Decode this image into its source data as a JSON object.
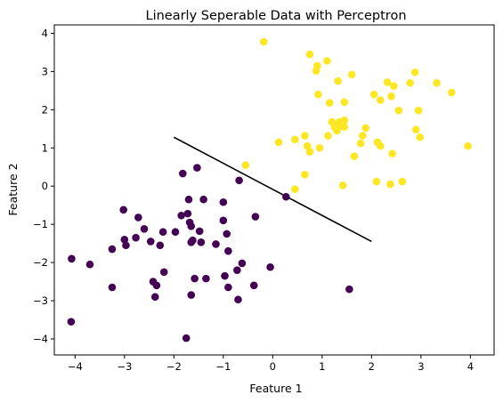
{
  "chart_data": {
    "type": "scatter",
    "title": "Linearly Seperable Data with Perceptron",
    "xlabel": "Feature 1",
    "ylabel": "Feature 2",
    "xlim": [
      -4.42,
      4.48
    ],
    "ylim": [
      -4.42,
      4.22
    ],
    "xticks": [
      -4,
      -3,
      -2,
      -1,
      0,
      1,
      2,
      3,
      4
    ],
    "yticks": [
      -4,
      -3,
      -2,
      -1,
      0,
      1,
      2,
      3,
      4
    ],
    "grid": false,
    "colors": {
      "class_0": "#440154",
      "class_1": "#fde725",
      "boundary": "#000000"
    },
    "series": [
      {
        "class": 0,
        "points": [
          [
            -4.07,
            -1.9
          ],
          [
            -4.08,
            -3.55
          ],
          [
            -3.7,
            -2.05
          ],
          [
            -3.25,
            -1.65
          ],
          [
            -3.25,
            -2.65
          ],
          [
            -3.02,
            -0.62
          ],
          [
            -3.0,
            -1.4
          ],
          [
            -2.97,
            -1.55
          ],
          [
            -2.77,
            -1.35
          ],
          [
            -2.72,
            -0.82
          ],
          [
            -2.6,
            -1.12
          ],
          [
            -2.47,
            -1.45
          ],
          [
            -2.42,
            -2.5
          ],
          [
            -2.38,
            -2.9
          ],
          [
            -2.35,
            -2.6
          ],
          [
            -2.28,
            -1.55
          ],
          [
            -2.22,
            -1.2
          ],
          [
            -2.2,
            -2.25
          ],
          [
            -1.97,
            -1.2
          ],
          [
            -1.85,
            -0.77
          ],
          [
            -1.82,
            0.33
          ],
          [
            -1.72,
            -0.72
          ],
          [
            -1.7,
            -0.35
          ],
          [
            -1.68,
            -0.95
          ],
          [
            -1.65,
            -1.05
          ],
          [
            -1.65,
            -1.47
          ],
          [
            -1.65,
            -2.85
          ],
          [
            -1.62,
            -1.42
          ],
          [
            -1.58,
            -2.42
          ],
          [
            -1.53,
            0.48
          ],
          [
            -1.48,
            -1.18
          ],
          [
            -1.45,
            -1.47
          ],
          [
            -1.4,
            -0.35
          ],
          [
            -1.35,
            -2.42
          ],
          [
            -1.75,
            -3.98
          ],
          [
            -1.15,
            -1.52
          ],
          [
            -1.0,
            -0.42
          ],
          [
            -1.0,
            -0.9
          ],
          [
            -0.97,
            -2.35
          ],
          [
            -0.93,
            -1.25
          ],
          [
            -0.9,
            -1.7
          ],
          [
            -0.9,
            -2.65
          ],
          [
            -0.72,
            -2.2
          ],
          [
            -0.7,
            -2.97
          ],
          [
            -0.68,
            0.15
          ],
          [
            -0.62,
            -2.02
          ],
          [
            -0.38,
            -2.6
          ],
          [
            -0.35,
            -0.8
          ],
          [
            -0.05,
            -2.12
          ],
          [
            0.27,
            -0.28
          ],
          [
            1.55,
            -2.7
          ]
        ]
      },
      {
        "class": 1,
        "points": [
          [
            -0.18,
            3.78
          ],
          [
            -0.55,
            0.55
          ],
          [
            0.12,
            1.15
          ],
          [
            0.45,
            -0.08
          ],
          [
            0.45,
            1.22
          ],
          [
            0.65,
            0.3
          ],
          [
            0.65,
            1.32
          ],
          [
            0.7,
            1.05
          ],
          [
            0.75,
            0.9
          ],
          [
            0.75,
            3.45
          ],
          [
            0.88,
            3.02
          ],
          [
            0.9,
            3.15
          ],
          [
            0.92,
            2.4
          ],
          [
            0.95,
            1.0
          ],
          [
            1.1,
            3.28
          ],
          [
            1.12,
            1.32
          ],
          [
            1.15,
            2.18
          ],
          [
            1.2,
            1.68
          ],
          [
            1.25,
            1.55
          ],
          [
            1.3,
            1.45
          ],
          [
            1.32,
            2.75
          ],
          [
            1.35,
            1.68
          ],
          [
            1.4,
            1.58
          ],
          [
            1.42,
            0.02
          ],
          [
            1.45,
            1.55
          ],
          [
            1.45,
            1.72
          ],
          [
            1.45,
            2.2
          ],
          [
            1.6,
            2.92
          ],
          [
            1.65,
            0.78
          ],
          [
            1.78,
            1.12
          ],
          [
            1.82,
            1.32
          ],
          [
            1.88,
            1.52
          ],
          [
            2.05,
            2.4
          ],
          [
            2.1,
            0.12
          ],
          [
            2.12,
            1.15
          ],
          [
            2.18,
            1.05
          ],
          [
            2.18,
            2.25
          ],
          [
            2.32,
            2.72
          ],
          [
            2.38,
            0.05
          ],
          [
            2.4,
            2.35
          ],
          [
            2.42,
            0.85
          ],
          [
            2.45,
            2.62
          ],
          [
            2.55,
            1.98
          ],
          [
            2.62,
            0.12
          ],
          [
            2.78,
            2.7
          ],
          [
            2.88,
            2.98
          ],
          [
            2.9,
            1.48
          ],
          [
            2.95,
            1.98
          ],
          [
            2.98,
            1.28
          ],
          [
            3.32,
            2.7
          ],
          [
            3.62,
            2.45
          ],
          [
            3.95,
            1.05
          ]
        ]
      }
    ],
    "decision_boundary": {
      "x": [
        -2.0,
        2.0
      ],
      "y": [
        1.28,
        -1.45
      ]
    }
  }
}
